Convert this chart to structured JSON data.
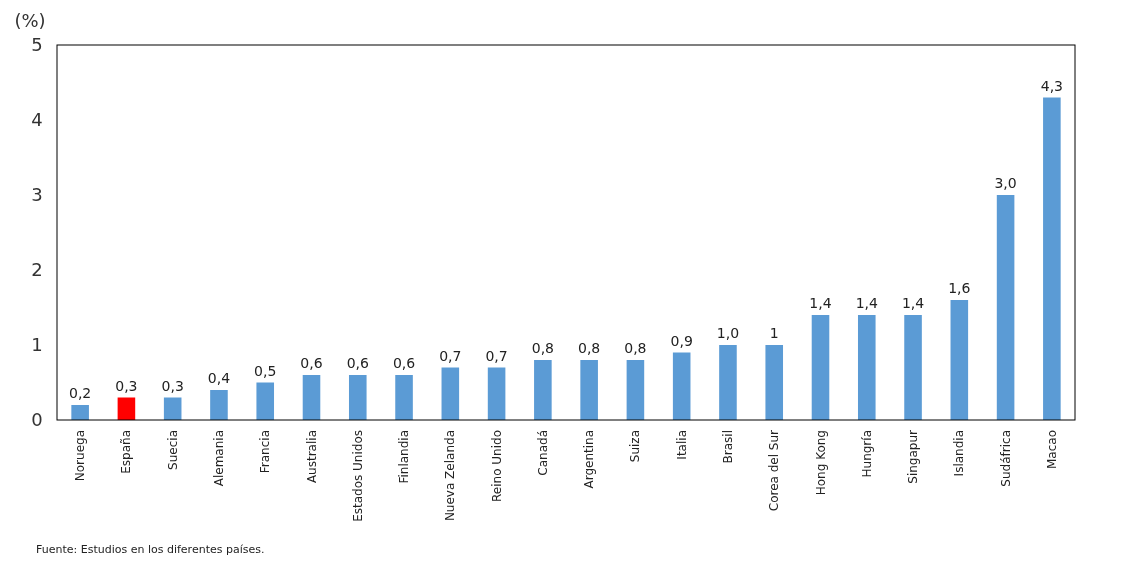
{
  "chart_data": {
    "type": "bar",
    "ylabel": "(%)",
    "categories": [
      "Noruega",
      "España",
      "Suecia",
      "Alemania",
      "Francia",
      "Australia",
      "Estados Unidos",
      "Finlandia",
      "Nueva Zelanda",
      "Reino Unido",
      "Canadá",
      "Argentina",
      "Suiza",
      "Italia",
      "Brasil",
      "Corea del Sur",
      "Hong Kong",
      "Hungría",
      "Singapur",
      "Islandia",
      "Sudáfrica",
      "Macao"
    ],
    "values": [
      0.2,
      0.3,
      0.3,
      0.4,
      0.5,
      0.6,
      0.6,
      0.6,
      0.7,
      0.7,
      0.8,
      0.8,
      0.8,
      0.9,
      1.0,
      1.0,
      1.4,
      1.4,
      1.4,
      1.6,
      3.0,
      4.3
    ],
    "colors": [
      "#5b9bd5",
      "#ff0000",
      "#5b9bd5",
      "#5b9bd5",
      "#5b9bd5",
      "#5b9bd5",
      "#5b9bd5",
      "#5b9bd5",
      "#5b9bd5",
      "#5b9bd5",
      "#5b9bd5",
      "#5b9bd5",
      "#5b9bd5",
      "#5b9bd5",
      "#5b9bd5",
      "#5b9bd5",
      "#5b9bd5",
      "#5b9bd5",
      "#5b9bd5",
      "#5b9bd5",
      "#5b9bd5",
      "#5b9bd5"
    ],
    "value_labels": [
      "0,2",
      "0,3",
      "0,3",
      "0,4",
      "0,5",
      "0,6",
      "0,6",
      "0,6",
      "0,7",
      "0,7",
      "0,8",
      "0,8",
      "0,8",
      "0,9",
      "1,0",
      "1",
      "1,4",
      "1,4",
      "1,4",
      "1,6",
      "3,0",
      "4,3"
    ],
    "ylim": [
      0,
      5
    ],
    "yticks": [
      0,
      1,
      2,
      3,
      4,
      5
    ],
    "grid": false,
    "annotations": [
      "Fuente: Estudios en los diferentes países."
    ]
  }
}
